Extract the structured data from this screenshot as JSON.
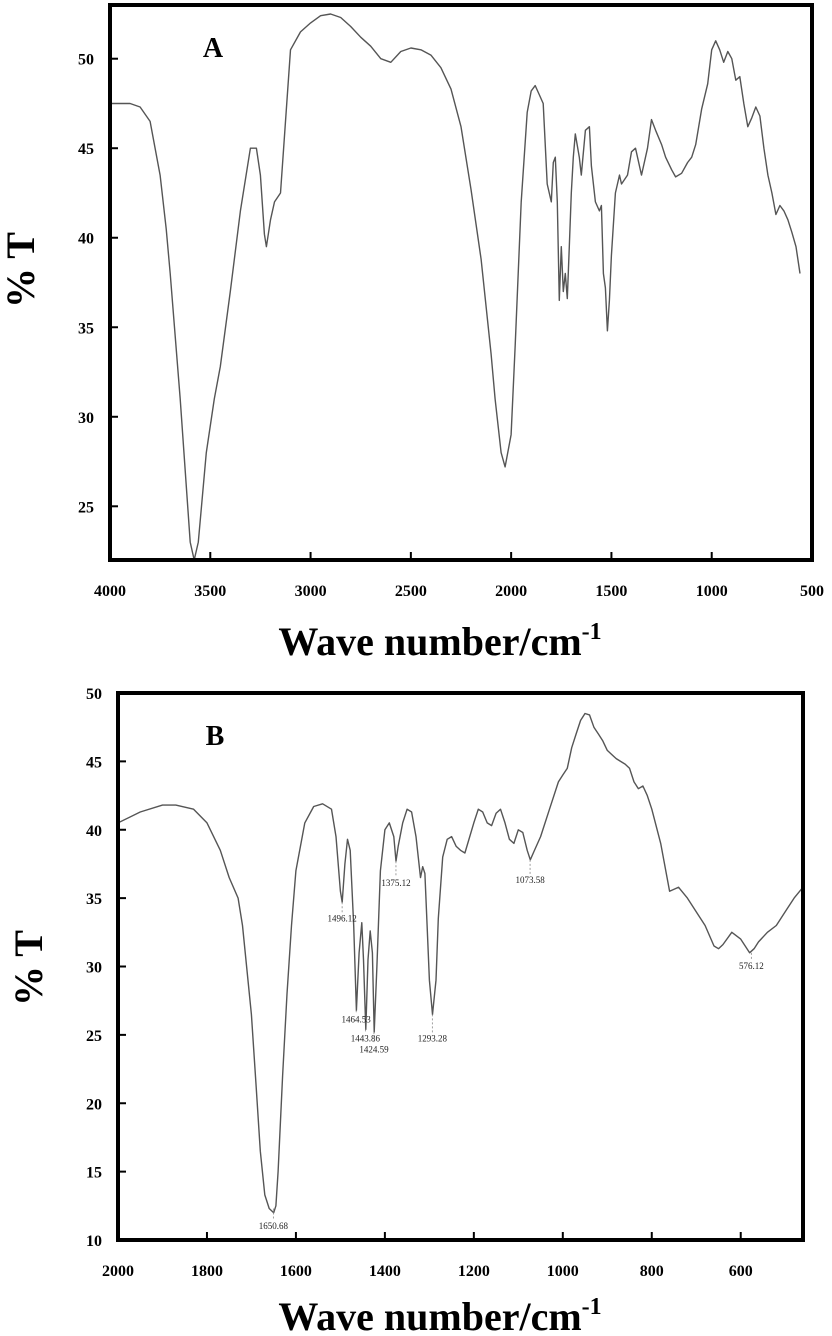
{
  "chart_data": [
    {
      "type": "line",
      "panel_label": "A",
      "xlabel": "Wave number/cm",
      "xlabel_sup": "-1",
      "ylabel": "% T",
      "xlim": [
        4000,
        500
      ],
      "ylim": [
        22,
        53
      ],
      "xticks": [
        4000,
        3500,
        3000,
        2500,
        2000,
        1500,
        1000,
        500
      ],
      "yticks": [
        25,
        30,
        35,
        40,
        45,
        50
      ],
      "grid": false,
      "series": [
        {
          "color": "#555555",
          "x": [
            4000,
            3900,
            3850,
            3800,
            3750,
            3720,
            3700,
            3650,
            3600,
            3580,
            3560,
            3520,
            3480,
            3450,
            3400,
            3350,
            3300,
            3270,
            3250,
            3230,
            3220,
            3200,
            3180,
            3150,
            3100,
            3050,
            3000,
            2950,
            2900,
            2850,
            2800,
            2750,
            2700,
            2650,
            2600,
            2550,
            2500,
            2450,
            2400,
            2350,
            2300,
            2250,
            2200,
            2150,
            2100,
            2080,
            2050,
            2030,
            2000,
            1980,
            1950,
            1920,
            1900,
            1880,
            1860,
            1840,
            1820,
            1800,
            1790,
            1780,
            1770,
            1760,
            1750,
            1740,
            1730,
            1720,
            1710,
            1700,
            1690,
            1680,
            1660,
            1650,
            1630,
            1610,
            1600,
            1580,
            1560,
            1550,
            1540,
            1530,
            1520,
            1510,
            1500,
            1480,
            1460,
            1450,
            1420,
            1400,
            1380,
            1350,
            1320,
            1300,
            1280,
            1250,
            1230,
            1200,
            1180,
            1150,
            1120,
            1100,
            1080,
            1050,
            1020,
            1000,
            980,
            960,
            940,
            920,
            900,
            880,
            860,
            840,
            820,
            800,
            780,
            760,
            740,
            720,
            700,
            680,
            660,
            640,
            620,
            600,
            580,
            560
          ],
          "y": [
            47.5,
            47.5,
            47.3,
            46.5,
            43.5,
            40.5,
            38,
            31,
            23,
            22,
            23,
            28,
            31,
            32.8,
            37,
            41.5,
            45,
            45,
            43.5,
            40.2,
            39.5,
            41,
            42,
            42.5,
            50.5,
            51.5,
            52,
            52.4,
            52.5,
            52.3,
            51.8,
            51.2,
            50.7,
            50,
            49.8,
            50.4,
            50.6,
            50.5,
            50.2,
            49.5,
            48.3,
            46.2,
            42.7,
            38.8,
            33.5,
            31,
            28,
            27.2,
            29,
            34,
            42,
            47,
            48.2,
            48.5,
            48,
            47.5,
            43,
            42,
            44.2,
            44.5,
            42,
            36.5,
            39.5,
            37,
            38,
            36.6,
            39.5,
            42.5,
            44.5,
            45.8,
            44.5,
            43.5,
            46,
            46.2,
            44,
            42,
            41.5,
            41.8,
            38,
            37.2,
            34.8,
            36.5,
            39,
            42.5,
            43.5,
            43,
            43.5,
            44.8,
            45,
            43.5,
            45,
            46.6,
            46,
            45.2,
            44.5,
            43.8,
            43.4,
            43.6,
            44.2,
            44.5,
            45.2,
            47.2,
            48.6,
            50.5,
            51,
            50.5,
            49.8,
            50.4,
            50,
            48.8,
            49,
            47.5,
            46.2,
            46.7,
            47.3,
            46.8,
            45,
            43.5,
            42.5,
            41.3,
            41.8,
            41.5,
            41,
            40.3,
            39.5,
            38
          ]
        }
      ]
    },
    {
      "type": "line",
      "panel_label": "B",
      "xlabel": "Wave number/cm",
      "xlabel_sup": "-1",
      "ylabel": "% T",
      "xlim": [
        2000,
        460
      ],
      "ylim": [
        10,
        50
      ],
      "xticks": [
        2000,
        1800,
        1600,
        1400,
        1200,
        1000,
        800,
        600
      ],
      "yticks": [
        10,
        15,
        20,
        25,
        30,
        35,
        40,
        45,
        50
      ],
      "grid": false,
      "annotations": [
        {
          "label": "1650.68",
          "x": 1650.68,
          "y": 12.3,
          "text_y": 10.8
        },
        {
          "label": "1496.12",
          "x": 1496.12,
          "y": 34.7,
          "text_y": 33.3
        },
        {
          "label": "1464.53",
          "x": 1464.53,
          "y": 26.8,
          "text_y": 25.9
        },
        {
          "label": "1443.86",
          "x": 1443.86,
          "y": 25.4,
          "text_y": 24.5
        },
        {
          "label": "1424.59",
          "x": 1424.59,
          "y": 25.2,
          "text_y": 23.7
        },
        {
          "label": "1375.12",
          "x": 1375.12,
          "y": 37.7,
          "text_y": 35.9
        },
        {
          "label": "1293.28",
          "x": 1293.28,
          "y": 26.5,
          "text_y": 24.5
        },
        {
          "label": "1073.58",
          "x": 1073.58,
          "y": 37.8,
          "text_y": 36.1
        },
        {
          "label": "576.12",
          "x": 576.12,
          "y": 31.0,
          "text_y": 29.8
        }
      ],
      "series": [
        {
          "color": "#555555",
          "x": [
            2000,
            1950,
            1900,
            1870,
            1830,
            1800,
            1770,
            1750,
            1730,
            1720,
            1700,
            1690,
            1680,
            1670,
            1660,
            1650,
            1645,
            1640,
            1630,
            1620,
            1610,
            1600,
            1580,
            1560,
            1540,
            1520,
            1510,
            1500,
            1496,
            1490,
            1484,
            1478,
            1470,
            1464,
            1458,
            1452,
            1448,
            1443,
            1438,
            1433,
            1428,
            1424,
            1418,
            1410,
            1400,
            1390,
            1380,
            1375,
            1370,
            1360,
            1350,
            1340,
            1330,
            1320,
            1315,
            1310,
            1305,
            1300,
            1293,
            1285,
            1280,
            1270,
            1260,
            1250,
            1240,
            1230,
            1220,
            1200,
            1190,
            1180,
            1170,
            1160,
            1150,
            1140,
            1130,
            1120,
            1110,
            1100,
            1090,
            1080,
            1073,
            1065,
            1050,
            1030,
            1010,
            1000,
            990,
            980,
            970,
            960,
            950,
            940,
            930,
            920,
            910,
            900,
            890,
            880,
            870,
            860,
            850,
            840,
            830,
            820,
            810,
            800,
            780,
            760,
            740,
            720,
            700,
            680,
            660,
            650,
            640,
            620,
            600,
            590,
            580,
            570,
            560,
            540,
            520,
            500,
            480,
            460
          ],
          "y": [
            40.5,
            41.3,
            41.8,
            41.8,
            41.5,
            40.5,
            38.5,
            36.5,
            35,
            33,
            26.5,
            21.5,
            16.5,
            13.3,
            12.3,
            12,
            12.5,
            15,
            22,
            28,
            33,
            37,
            40.5,
            41.7,
            41.9,
            41.5,
            39.5,
            35.5,
            34.7,
            37.5,
            39.3,
            38.5,
            33,
            26.8,
            31,
            33.2,
            30.5,
            25.4,
            30.5,
            32.6,
            31,
            25.2,
            30,
            37,
            40,
            40.5,
            39.5,
            37.7,
            38.8,
            40.5,
            41.5,
            41.3,
            39.5,
            36.5,
            37.3,
            36.8,
            33,
            29,
            26.5,
            29,
            33.5,
            38,
            39.3,
            39.5,
            38.8,
            38.5,
            38.3,
            40.5,
            41.5,
            41.3,
            40.5,
            40.3,
            41.2,
            41.5,
            40.5,
            39.3,
            39,
            40,
            39.8,
            38.5,
            37.8,
            38.4,
            39.5,
            41.5,
            43.5,
            44,
            44.5,
            46,
            47,
            48,
            48.5,
            48.4,
            47.5,
            47,
            46.5,
            45.8,
            45.5,
            45.2,
            45,
            44.8,
            44.5,
            43.5,
            43,
            43.2,
            42.5,
            41.5,
            39,
            35.5,
            35.8,
            35,
            34,
            33,
            31.5,
            31.3,
            31.6,
            32.5,
            32,
            31.5,
            31,
            31.3,
            31.8,
            32.5,
            33,
            34,
            35,
            35.8
          ]
        }
      ]
    }
  ]
}
